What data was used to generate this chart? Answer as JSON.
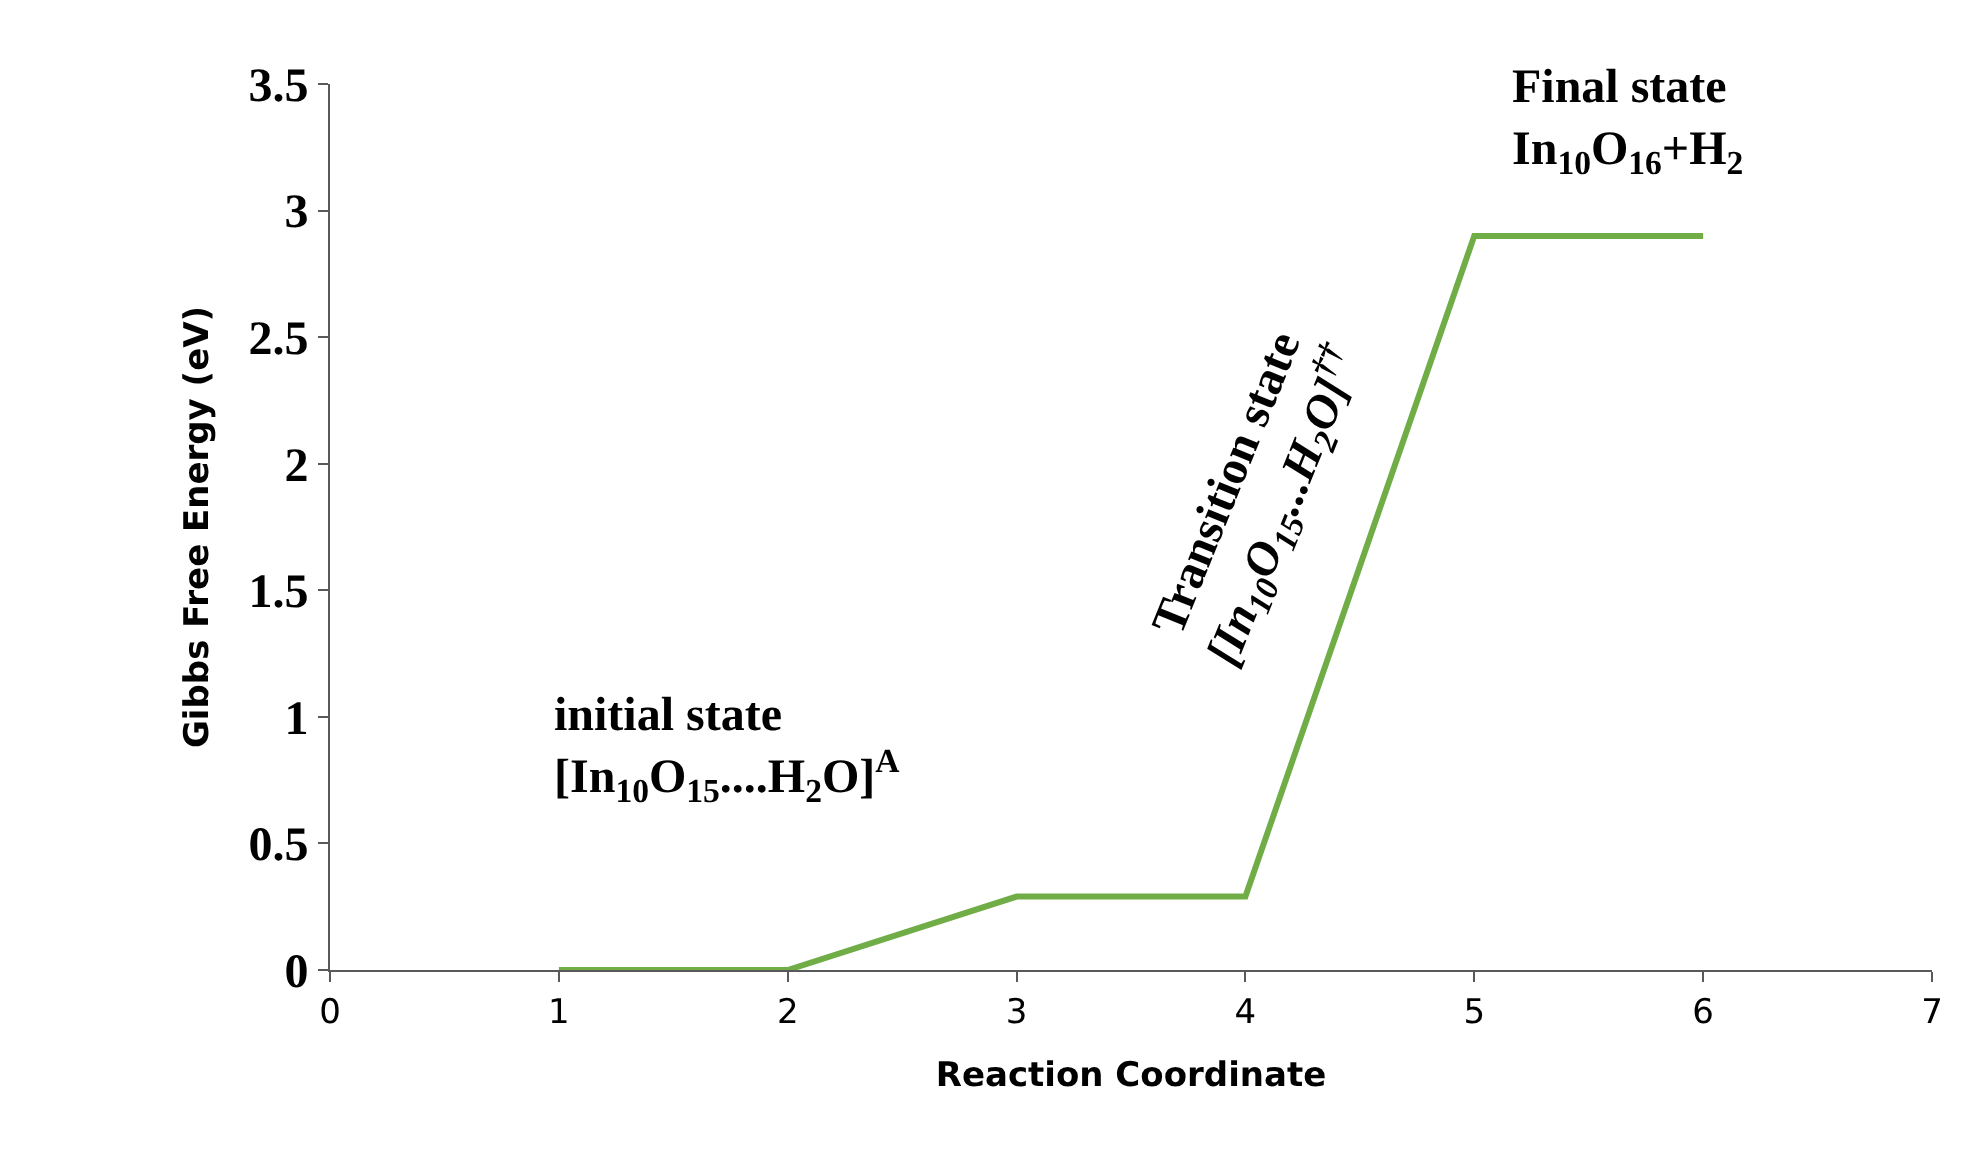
{
  "chart_data": {
    "type": "line",
    "xlabel": "Reaction Coordinate",
    "ylabel": "Gibbs Free Energy (eV)",
    "x": [
      1,
      2,
      3,
      4,
      5,
      6
    ],
    "series": [
      {
        "color": "#70ad47",
        "values": [
          0,
          0,
          0.29,
          0.29,
          2.9,
          2.9
        ]
      }
    ],
    "xlim": [
      0,
      7
    ],
    "xticks": [
      0,
      1,
      2,
      3,
      4,
      5,
      6,
      7
    ],
    "ylim": [
      0,
      3.5
    ],
    "yticks": [
      0,
      0.5,
      1,
      1.5,
      2,
      2.5,
      3,
      3.5
    ],
    "marker": "none",
    "line_style": "solid",
    "annotations": [
      "initial state\n[In$_{10}$O$_{15}$....H$_{2}$O]$^{A}$",
      "Transition state\n[In$_{10}$O$_{15}$...H$_{2}$O]$^{††}$",
      "Final state\nIn$_{10}$O$_{16}$+H$_{2}$"
    ]
  }
}
